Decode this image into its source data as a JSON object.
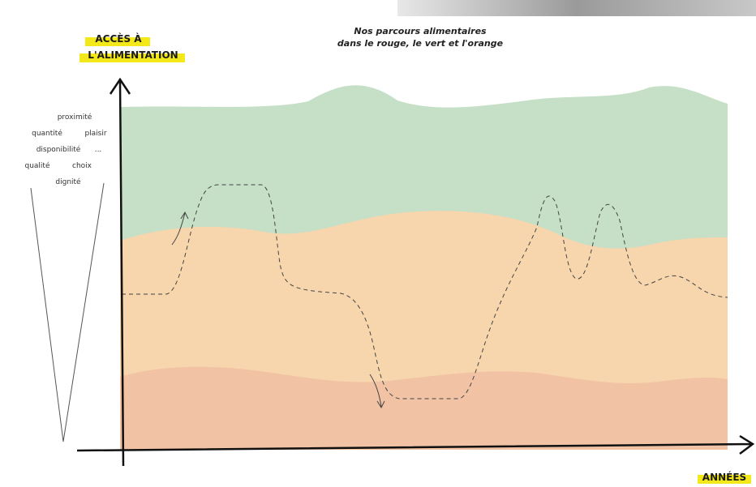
{
  "title": {
    "line1": "Nos parcours alimentaires",
    "line2": "dans le rouge, le vert et l'orange"
  },
  "y_axis_label": {
    "line1": "ACCÈS À",
    "line2": "L'ALIMENTATION"
  },
  "x_axis_label": "ANNÉES",
  "criteria": [
    "proximité",
    "quantité",
    "plaisir",
    "disponibilité",
    "...",
    "qualité",
    "choix",
    "dignité"
  ]
}
